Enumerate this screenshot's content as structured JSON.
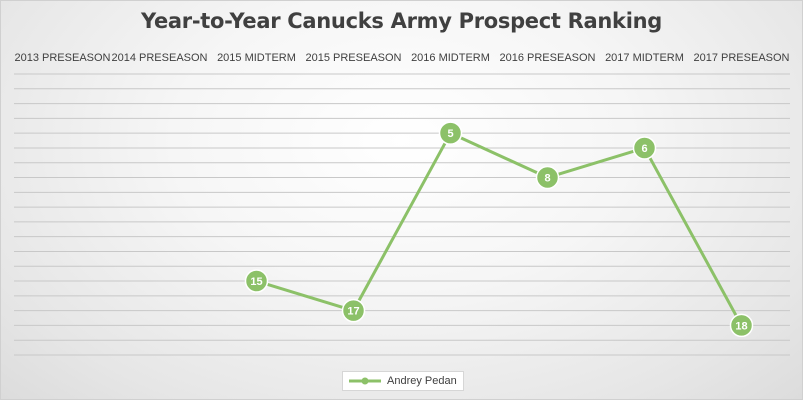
{
  "chart_data": {
    "type": "line",
    "title": "Year-to-Year Canucks Army Prospect Ranking",
    "categories": [
      "2013 PRESEASON",
      "2014 PRESEASON",
      "2015 MIDTERM",
      "2015 PRESEASON",
      "2016 MIDTERM",
      "2016 PRESEASON",
      "2017 MIDTERM",
      "2017 PRESEASON"
    ],
    "series": [
      {
        "name": "Andrey Pedan",
        "values": [
          null,
          null,
          15,
          17,
          5,
          8,
          6,
          18
        ],
        "color": "#8cc168"
      }
    ],
    "y_axis": {
      "reversed": true,
      "min": 1,
      "max": 20,
      "visible_labels": false
    },
    "x_axis_position": "top",
    "grid": true,
    "legend_position": "bottom"
  }
}
